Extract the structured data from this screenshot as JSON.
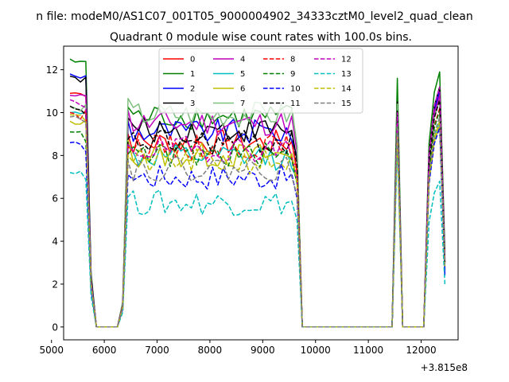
{
  "figure": {
    "suptitle": "n file: modeM0/AS1C07_001T05_9000004902_34333cztM0_level2_quad_clean",
    "title": "Quadrant 0 module wise count rates with 100.0s bins.",
    "offset_label": "+3.815e8"
  },
  "chart_data": {
    "type": "line",
    "title": "Quadrant 0 module wise count rates with 100.0s bins.",
    "xlabel": "",
    "ylabel": "",
    "x_offset": 381500000,
    "xlim": [
      5230,
      12700
    ],
    "ylim": [
      -0.6,
      13.1
    ],
    "x_ticks": [
      5000,
      6000,
      7000,
      8000,
      9000,
      10000,
      11000,
      12000
    ],
    "y_ticks": [
      0,
      2,
      4,
      6,
      8,
      10,
      12
    ],
    "grid": false,
    "legend": {
      "position": "top-center",
      "columns": 4
    },
    "segments": [
      {
        "x_start": 5350,
        "x_end": 9650,
        "bins": 44
      },
      {
        "x_start": 9750,
        "x_end": 11450,
        "bins": 18,
        "zero": true
      },
      {
        "x_start": 11550,
        "x_end": 11550,
        "bins": 1
      },
      {
        "x_start": 11650,
        "x_end": 12050,
        "bins": 5,
        "zero": true
      },
      {
        "x_start": 12150,
        "x_end": 12450,
        "bins": 4
      }
    ],
    "series": [
      {
        "name": "0",
        "color": "#ff0000",
        "dash": "solid",
        "level": 8.6,
        "start": 10.9,
        "spike": 9.9,
        "end_peak": 10.9,
        "end_last": 3.1
      },
      {
        "name": "1",
        "color": "#008000",
        "dash": "solid",
        "level": 9.8,
        "start": 12.5,
        "spike": 11.6,
        "end_peak": 11.9,
        "end_last": 3.5
      },
      {
        "name": "2",
        "color": "#0000ff",
        "dash": "solid",
        "level": 9.1,
        "start": 11.8,
        "spike": 10.2,
        "end_peak": 11.0,
        "end_last": 2.4
      },
      {
        "name": "3",
        "color": "#000000",
        "dash": "solid",
        "level": 9.2,
        "start": 11.7,
        "spike": 10.5,
        "end_peak": 11.2,
        "end_last": 3.2
      },
      {
        "name": "4",
        "color": "#bf00bf",
        "dash": "solid",
        "level": 9.5,
        "start": 10.8,
        "spike": 10.2,
        "end_peak": 10.8,
        "end_last": 3.0
      },
      {
        "name": "5",
        "color": "#00bfbf",
        "dash": "solid",
        "level": 7.9,
        "start": 10.0,
        "spike": 9.2,
        "end_peak": 9.6,
        "end_last": 2.8
      },
      {
        "name": "6",
        "color": "#bfbf00",
        "dash": "solid",
        "level": 8.0,
        "start": 9.6,
        "spike": 9.0,
        "end_peak": 9.4,
        "end_last": 2.7
      },
      {
        "name": "7",
        "color": "#7fbf7f",
        "dash": "solid",
        "level": 9.9,
        "start": 10.3,
        "spike": 10.4,
        "end_peak": 10.6,
        "end_last": 3.0
      },
      {
        "name": "8",
        "color": "#ff0000",
        "dash": "dashed",
        "level": 8.4,
        "start": 10.0,
        "spike": 9.6,
        "end_peak": 10.2,
        "end_last": 3.0
      },
      {
        "name": "9",
        "color": "#008000",
        "dash": "dashed",
        "level": 8.0,
        "start": 9.1,
        "spike": 9.8,
        "end_peak": 10.1,
        "end_last": 2.9
      },
      {
        "name": "10",
        "color": "#0000ff",
        "dash": "dashed",
        "level": 7.0,
        "start": 8.6,
        "spike": 9.1,
        "end_peak": 9.3,
        "end_last": 2.6
      },
      {
        "name": "11",
        "color": "#000000",
        "dash": "dashed",
        "level": 8.6,
        "start": 10.3,
        "spike": 10.1,
        "end_peak": 10.6,
        "end_last": 3.0
      },
      {
        "name": "12",
        "color": "#bf00bf",
        "dash": "dashed",
        "level": 8.3,
        "start": 10.6,
        "spike": 10.0,
        "end_peak": 11.2,
        "end_last": 3.1
      },
      {
        "name": "13",
        "color": "#00bfbf",
        "dash": "dashed",
        "level": 5.8,
        "start": 7.2,
        "spike": 8.5,
        "end_peak": 6.8,
        "end_last": 2.0
      },
      {
        "name": "14",
        "color": "#bfbf00",
        "dash": "dashed",
        "level": 7.7,
        "start": 9.9,
        "spike": 9.0,
        "end_peak": 9.6,
        "end_last": 2.8
      },
      {
        "name": "15",
        "color": "#7f7f7f",
        "dash": "dashed",
        "level": 7.4,
        "start": 9.8,
        "spike": 9.4,
        "end_peak": 9.8,
        "end_last": 2.9
      }
    ]
  }
}
